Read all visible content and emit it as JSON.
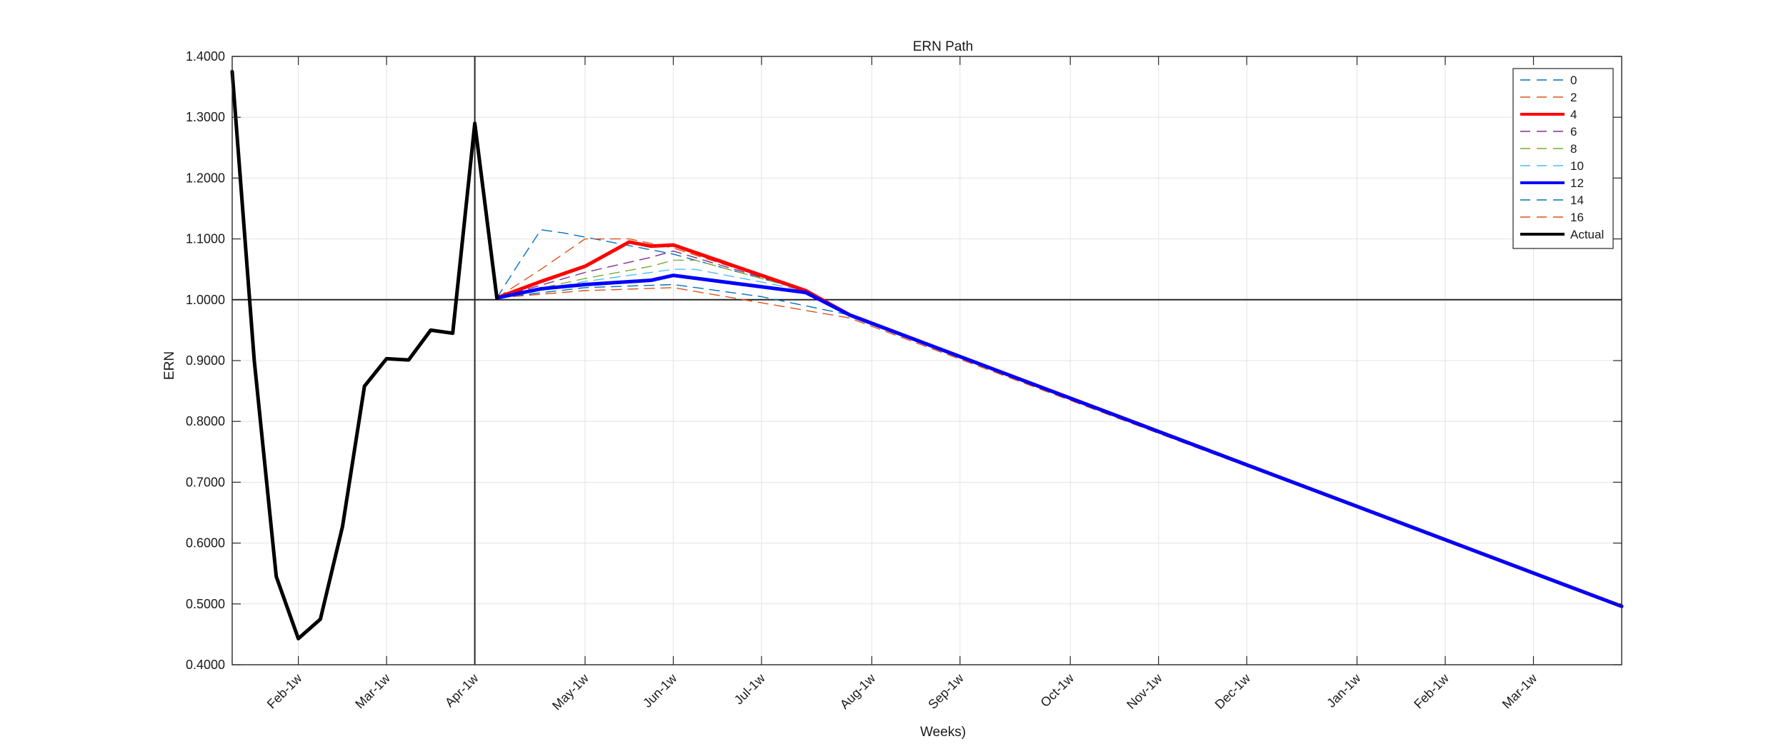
{
  "chart_data": {
    "type": "line",
    "title": "ERN Path",
    "xlabel": "Weeks)",
    "ylabel": "ERN",
    "ylim": [
      0.4,
      1.4
    ],
    "yticks": [
      0.4,
      0.5,
      0.6,
      0.7,
      0.8,
      0.9,
      1.0,
      1.1,
      1.2,
      1.3,
      1.4
    ],
    "ytick_labels": [
      "0.4000",
      "0.5000",
      "0.6000",
      "0.7000",
      "0.8000",
      "0.9000",
      "1.0000",
      "1.1000",
      "1.2000",
      "1.3000",
      "1.4000"
    ],
    "xlim": [
      0,
      63
    ],
    "xticks": [
      3,
      7,
      11,
      16,
      20,
      24,
      29,
      33,
      38,
      42,
      46,
      51,
      55,
      59
    ],
    "xtick_labels": [
      "Feb-1w",
      "Mar-1w",
      "Apr-1w",
      "May-1w",
      "Jun-1w",
      "Jul-1w",
      "Aug-1w",
      "Sep-1w",
      "Oct-1w",
      "Nov-1w",
      "Dec-1w",
      "Jan-1w",
      "Feb-1w",
      "Mar-1w"
    ],
    "reference_lines": {
      "horizontal_y": 1.0,
      "vertical_x": 11
    },
    "grid": true,
    "legend_position": "top-right",
    "series": [
      {
        "name": "0",
        "color": "#0072BD",
        "style": "dashed",
        "width": "thin",
        "x": [
          12,
          13,
          14,
          15,
          20,
          26,
          28,
          63
        ],
        "y": [
          1.003,
          1.06,
          1.115,
          1.11,
          1.075,
          1.015,
          0.975,
          0.496
        ]
      },
      {
        "name": "2",
        "color": "#D95319",
        "style": "dashed",
        "width": "thin",
        "x": [
          12,
          14,
          16,
          18,
          20,
          26,
          28,
          63
        ],
        "y": [
          1.003,
          1.05,
          1.1,
          1.1,
          1.085,
          1.015,
          0.975,
          0.496
        ]
      },
      {
        "name": "4",
        "color": "#FF0000",
        "style": "solid",
        "width": "thick",
        "x": [
          12,
          14,
          16,
          18,
          19,
          20,
          26,
          28,
          63
        ],
        "y": [
          1.003,
          1.03,
          1.055,
          1.095,
          1.088,
          1.09,
          1.015,
          0.975,
          0.496
        ]
      },
      {
        "name": "6",
        "color": "#7E2F8E",
        "style": "dashed",
        "width": "thin",
        "x": [
          12,
          16,
          19,
          20,
          26,
          28,
          63
        ],
        "y": [
          1.003,
          1.045,
          1.07,
          1.08,
          1.015,
          0.975,
          0.496
        ]
      },
      {
        "name": "8",
        "color": "#77AC30",
        "style": "dashed",
        "width": "thin",
        "x": [
          12,
          16,
          19,
          20,
          21,
          26,
          28,
          63
        ],
        "y": [
          1.003,
          1.035,
          1.055,
          1.065,
          1.065,
          1.015,
          0.975,
          0.496
        ]
      },
      {
        "name": "10",
        "color": "#4DBEEE",
        "style": "dashed",
        "width": "thin",
        "x": [
          12,
          16,
          20,
          21,
          26,
          28,
          63
        ],
        "y": [
          1.003,
          1.03,
          1.05,
          1.05,
          1.015,
          0.975,
          0.496
        ]
      },
      {
        "name": "12",
        "color": "#0000FF",
        "style": "solid",
        "width": "thick",
        "x": [
          12,
          14,
          16,
          19,
          20,
          26,
          28,
          63
        ],
        "y": [
          1.003,
          1.018,
          1.025,
          1.032,
          1.04,
          1.012,
          0.975,
          0.496
        ]
      },
      {
        "name": "14",
        "color": "#0072BD",
        "style": "dashed",
        "width": "thin",
        "x": [
          12,
          16,
          20,
          24,
          28,
          63
        ],
        "y": [
          1.003,
          1.02,
          1.025,
          1.005,
          0.975,
          0.496
        ]
      },
      {
        "name": "16",
        "color": "#D95319",
        "style": "dashed",
        "width": "thin",
        "x": [
          12,
          16,
          20,
          24,
          28,
          63
        ],
        "y": [
          1.003,
          1.015,
          1.02,
          0.995,
          0.97,
          0.496
        ]
      },
      {
        "name": "Actual",
        "color": "#000000",
        "style": "solid",
        "width": "thick",
        "x": [
          0,
          1,
          2,
          3,
          4,
          5,
          6,
          7,
          8,
          9,
          10,
          11,
          12
        ],
        "y": [
          1.375,
          0.9,
          0.545,
          0.443,
          0.475,
          0.627,
          0.858,
          0.903,
          0.901,
          0.95,
          0.945,
          1.29,
          1.003
        ]
      }
    ]
  }
}
